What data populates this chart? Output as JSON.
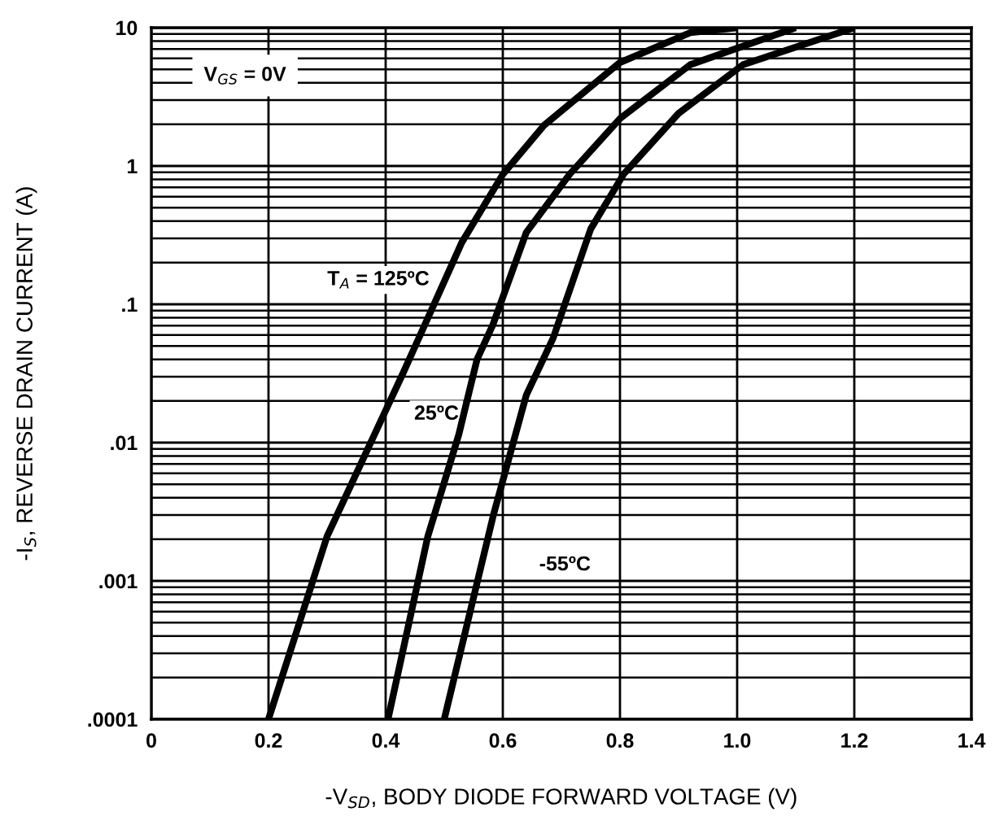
{
  "chart_data": {
    "type": "line",
    "xlabel": "-V$_{SD}$, BODY DIODE FORWARD VOLTAGE (V)",
    "ylabel": "-I$_{S}$, REVERSE DRAIN CURRENT (A)",
    "annotations": [
      "V$_{GS}$ = 0V"
    ],
    "log": "y",
    "grid": true,
    "legend": false,
    "marker": "none",
    "line_style": "solid",
    "xlim": [
      0,
      1.4
    ],
    "xticks": [
      {
        "value": 0,
        "label": "0"
      },
      0.2,
      0.4,
      0.6,
      0.8,
      {
        "value": 1.0,
        "label": "1.0"
      },
      1.2,
      1.4
    ],
    "ylim": [
      0.0001,
      10
    ],
    "yticks": [
      {
        "value": 0.0001,
        "label": ".0001"
      },
      {
        "value": 0.001,
        "label": ".001"
      },
      {
        "value": 0.01,
        "label": ".01"
      },
      {
        "value": 0.1,
        "label": ".1"
      },
      1,
      10
    ],
    "series": [
      {
        "name": "T$_{A}$ = 125ºC",
        "color": "#000000",
        "x": [
          0.2,
          0.3,
          0.43,
          0.53,
          0.6,
          0.67,
          0.8,
          0.92,
          1.0
        ],
        "values": [
          0.0001,
          0.0021,
          0.032,
          0.28,
          0.87,
          1.96,
          5.6,
          9.2,
          10
        ]
      },
      {
        "name": "25ºC",
        "color": "#000000",
        "x": [
          0.404,
          0.472,
          0.525,
          0.556,
          0.583,
          0.64,
          0.714,
          0.8,
          0.92,
          1.1
        ],
        "values": [
          0.0001,
          0.0021,
          0.0115,
          0.04,
          0.071,
          0.33,
          0.87,
          2.2,
          5.4,
          10
        ]
      },
      {
        "name": "-55ºC",
        "color": "#000000",
        "x": [
          0.5,
          0.584,
          0.64,
          0.686,
          0.75,
          0.806,
          0.9,
          1.01,
          1.2
        ],
        "values": [
          0.0001,
          0.003,
          0.022,
          0.057,
          0.35,
          0.87,
          2.4,
          5.4,
          10
        ]
      }
    ]
  }
}
